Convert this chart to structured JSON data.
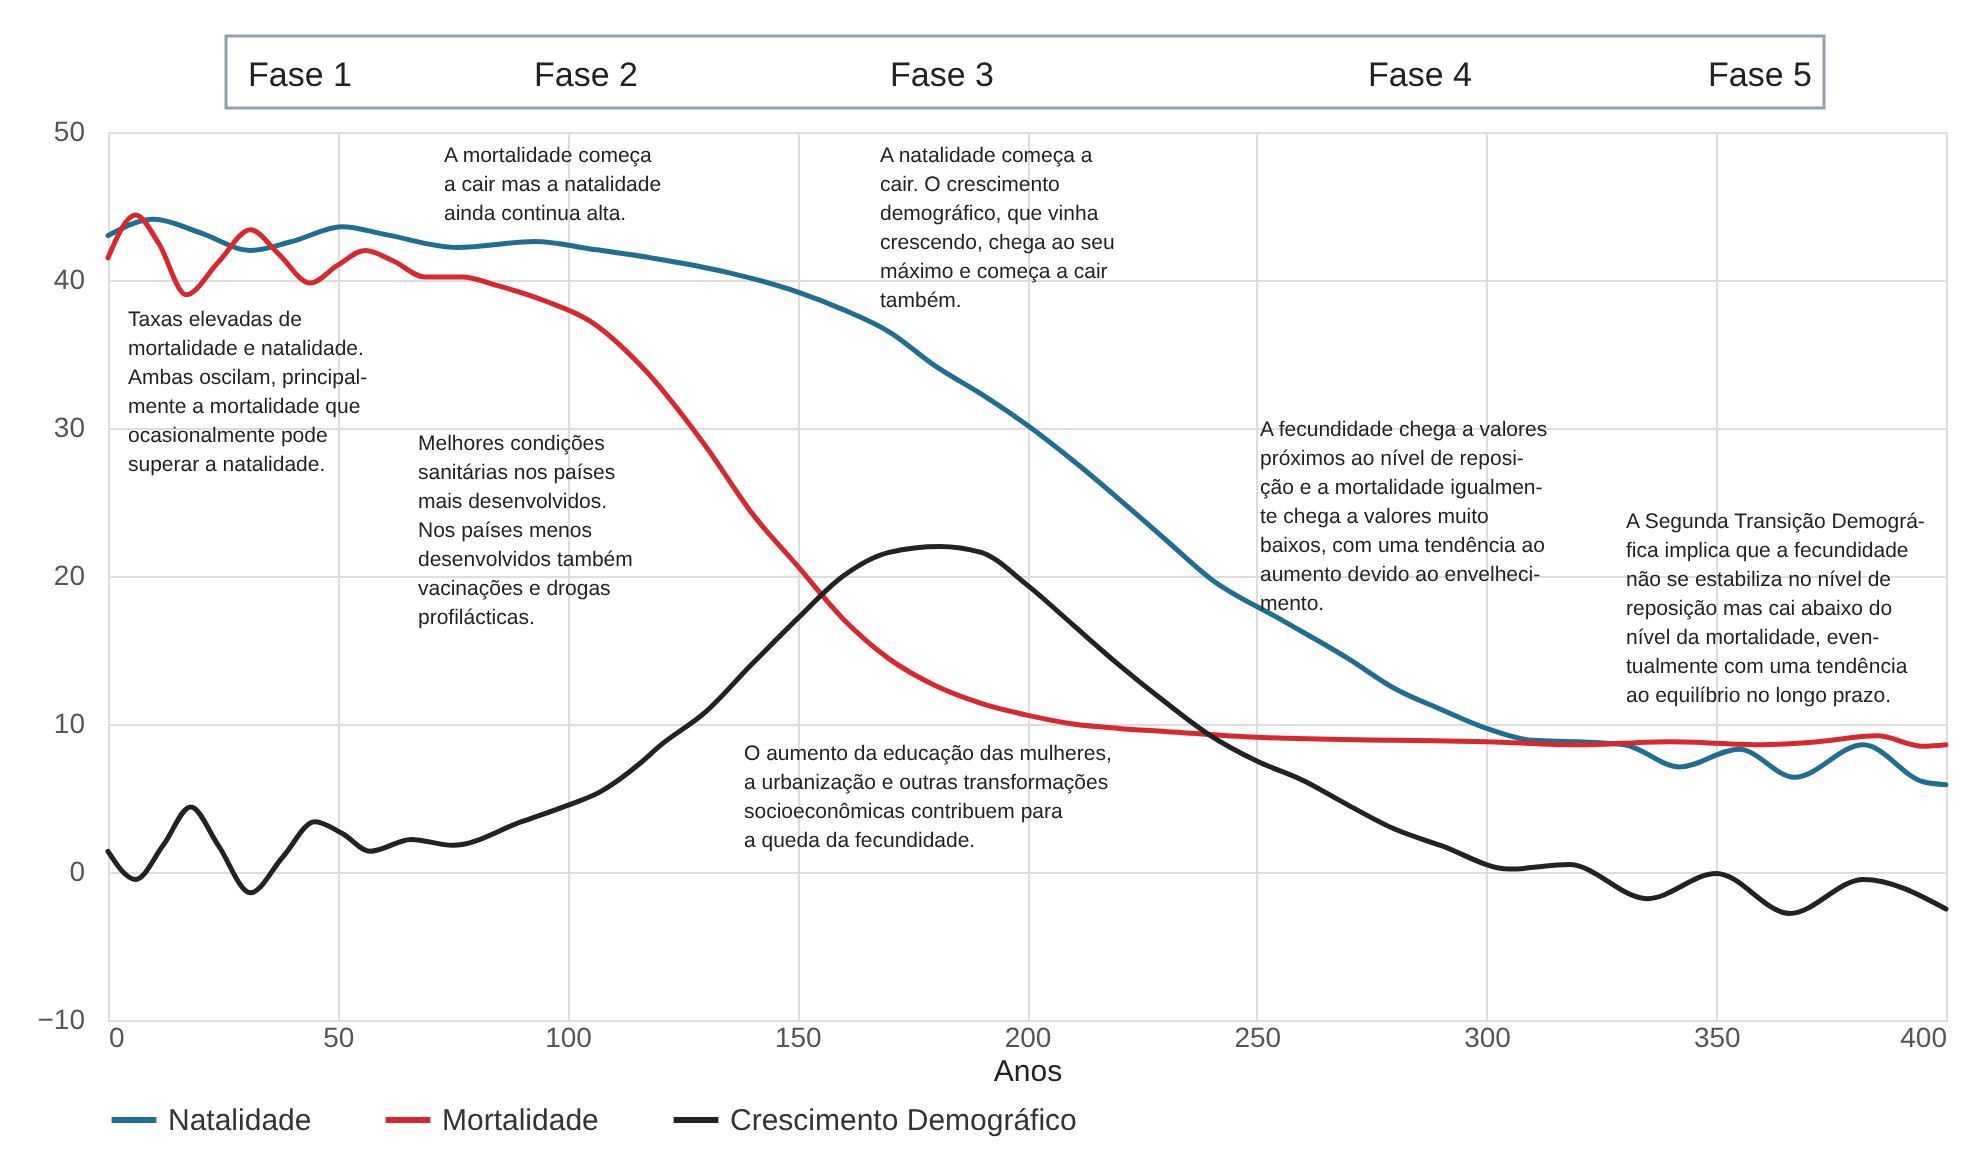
{
  "chart_data": {
    "type": "line",
    "xlabel": "Anos",
    "xlim": [
      0,
      400
    ],
    "xticks": [
      0,
      50,
      100,
      150,
      200,
      250,
      300,
      350,
      400
    ],
    "ylim": [
      -10,
      50
    ],
    "yticks": [
      -10,
      0,
      10,
      20,
      30,
      40,
      50
    ],
    "grid": true,
    "legend": "bottom",
    "marker": "none",
    "line_style": "solid",
    "series": [
      {
        "name": "Natalidade",
        "color": "#1f6e92",
        "x": [
          0,
          10,
          20,
          31,
          40,
          51,
          60,
          76,
          93,
          105,
          120,
          135,
          150,
          160,
          170,
          180,
          190,
          200,
          210,
          220,
          230,
          240,
          255,
          270,
          280,
          290,
          300,
          310,
          320,
          330,
          342,
          355,
          367,
          382,
          395,
          400
        ],
        "values": [
          43,
          44.1,
          43.2,
          42.0,
          42.6,
          43.6,
          43.1,
          42.2,
          42.6,
          42.1,
          41.4,
          40.5,
          39.2,
          38.0,
          36.5,
          34.2,
          32.3,
          30.2,
          27.8,
          25.2,
          22.5,
          19.8,
          17.1,
          14.4,
          12.4,
          11.0,
          9.7,
          8.9,
          8.8,
          8.6,
          7.1,
          8.3,
          6.4,
          8.6,
          6.1,
          5.9
        ]
      },
      {
        "name": "Mortalidade",
        "color": "#d9272e",
        "x": [
          0,
          6,
          11,
          17,
          24,
          31,
          37,
          44,
          50,
          56,
          62,
          69,
          77,
          85,
          95,
          105,
          116,
          130,
          140,
          150,
          160,
          170,
          180,
          190,
          200,
          210,
          220,
          230,
          250,
          280,
          300,
          320,
          340,
          360,
          372,
          385,
          395,
          400
        ],
        "values": [
          41.5,
          44.4,
          42.5,
          39.0,
          41.2,
          43.4,
          41.8,
          39.8,
          41.0,
          42.0,
          41.3,
          40.2,
          40.2,
          39.6,
          38.6,
          37.2,
          34.2,
          28.8,
          24.3,
          20.7,
          17.1,
          14.4,
          12.6,
          11.4,
          10.6,
          10.0,
          9.7,
          9.5,
          9.1,
          8.9,
          8.8,
          8.6,
          8.8,
          8.6,
          8.8,
          9.2,
          8.5,
          8.6
        ]
      },
      {
        "name": "Crescimento Demográfico",
        "color": "#222222",
        "x": [
          0,
          6,
          12,
          18,
          24,
          31,
          38,
          45,
          51,
          57,
          66,
          75,
          90,
          100,
          107,
          116,
          120,
          130,
          140,
          150,
          160,
          170,
          181,
          190,
          200,
          210,
          220,
          230,
          240,
          250,
          260,
          270,
          280,
          290,
          305,
          318,
          335,
          350,
          366,
          382,
          400
        ],
        "values": [
          1.4,
          -0.5,
          1.8,
          4.4,
          1.8,
          -1.4,
          1.0,
          3.4,
          2.6,
          1.4,
          2.2,
          1.8,
          3.4,
          4.5,
          5.4,
          7.4,
          8.5,
          10.8,
          14.0,
          17.1,
          20.0,
          21.6,
          22.0,
          21.6,
          19.4,
          16.7,
          14.0,
          11.5,
          9.2,
          7.5,
          6.2,
          4.5,
          2.9,
          1.8,
          0.2,
          0.5,
          -1.8,
          -0.1,
          -2.8,
          -0.5,
          -2.5
        ]
      }
    ],
    "annotations": [
      "Fase 1",
      "Fase 2",
      "Fase 3",
      "Fase 4",
      "Fase 5",
      "A mortalidade começa\na cair mas a natalidade\nainda continua alta.",
      "A natalidade começa a\ncair. O crescimento\ndemográfico, que vinha\ncrescendo, chega ao seu\nmáximo e começa a cair\n também.",
      "Taxas elevadas de\nmortalidade e natalidade.\nAmbas oscilam, principal-\nmente a mortalidade que\nocasionalmente pode\nsuperar a natalidade.",
      "Melhores condições\nsanitárias nos países\nmais desenvolvidos.\nNos países menos\ndesenvolvidos também\nvacinações e drogas\nprofilácticas.",
      "A fecundidade chega a valores\npróximos ao nível de reposi-\nção e a mortalidade igualmen-\nte chega a valores muito\nbaixos, com uma tendência ao\naumento devido ao envelheci-\nmento.",
      "A Segunda Transição Demográ-\nfica implica que a fecundidade\nnão se estabiliza no nível de\nreposição mas cai abaixo do\nnível da mortalidade, even-\ntualmente com uma tendência\nao equilíbrio no longo prazo.",
      "O aumento da educação das mulheres,\na urbanização e outras transformações\nsocioeconômicas contribuem para\na queda da fecundidade."
    ]
  }
}
